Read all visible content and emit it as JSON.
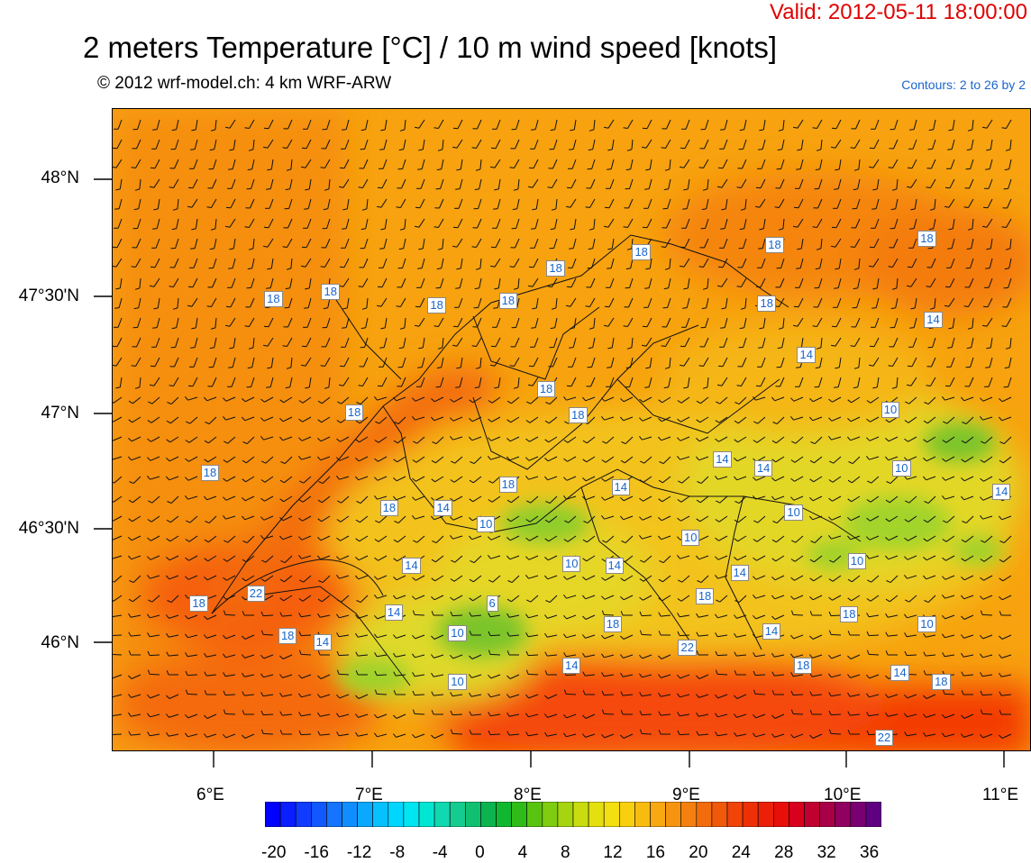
{
  "header": {
    "valid": "Valid: 2012-05-11 18:00:00",
    "title": "2 meters Temperature [°C] / 10 m wind speed [knots]",
    "subtitle": "© 2012 wrf-model.ch: 4 km WRF-ARW",
    "contours": "Contours: 2 to 26 by 2"
  },
  "axes": {
    "lat_labels": [
      "48°N",
      "47°30'N",
      "47°N",
      "46°30'N",
      "46°N"
    ],
    "lon_labels": [
      "6°E",
      "7°E",
      "8°E",
      "9°E",
      "10°E",
      "11°E"
    ]
  },
  "colorbar": {
    "ticks": [
      "-20",
      "-16",
      "-12",
      "-8",
      "-4",
      "0",
      "4",
      "8",
      "12",
      "16",
      "20",
      "24",
      "28",
      "32",
      "36"
    ]
  },
  "contour_labels": [
    {
      "text": "18",
      "lon": 7.4,
      "lat": 47.46
    },
    {
      "text": "18",
      "lon": 6.73,
      "lat": 47.52
    },
    {
      "text": "18",
      "lon": 6.37,
      "lat": 47.49
    },
    {
      "text": "18",
      "lon": 8.15,
      "lat": 47.62
    },
    {
      "text": "18",
      "lon": 7.85,
      "lat": 47.48
    },
    {
      "text": "18",
      "lon": 8.69,
      "lat": 47.69
    },
    {
      "text": "18",
      "lon": 9.53,
      "lat": 47.72
    },
    {
      "text": "18",
      "lon": 10.49,
      "lat": 47.75
    },
    {
      "text": "18",
      "lon": 9.48,
      "lat": 47.47
    },
    {
      "text": "14",
      "lon": 10.53,
      "lat": 47.4
    },
    {
      "text": "14",
      "lon": 9.73,
      "lat": 47.25
    },
    {
      "text": "18",
      "lon": 8.09,
      "lat": 47.1
    },
    {
      "text": "18",
      "lon": 6.88,
      "lat": 47.0
    },
    {
      "text": "18",
      "lon": 8.29,
      "lat": 46.99
    },
    {
      "text": "10",
      "lon": 10.26,
      "lat": 47.01
    },
    {
      "text": "18",
      "lon": 5.97,
      "lat": 46.74
    },
    {
      "text": "14",
      "lon": 9.2,
      "lat": 46.8
    },
    {
      "text": "14",
      "lon": 9.46,
      "lat": 46.76
    },
    {
      "text": "10",
      "lon": 10.33,
      "lat": 46.76
    },
    {
      "text": "18",
      "lon": 7.85,
      "lat": 46.69
    },
    {
      "text": "14",
      "lon": 8.56,
      "lat": 46.68
    },
    {
      "text": "14",
      "lon": 10.96,
      "lat": 46.66
    },
    {
      "text": "18",
      "lon": 7.1,
      "lat": 46.59
    },
    {
      "text": "14",
      "lon": 7.44,
      "lat": 46.59
    },
    {
      "text": "10",
      "lon": 9.65,
      "lat": 46.57
    },
    {
      "text": "10",
      "lon": 7.71,
      "lat": 46.52
    },
    {
      "text": "10",
      "lon": 9.0,
      "lat": 46.46
    },
    {
      "text": "14",
      "lon": 7.24,
      "lat": 46.34
    },
    {
      "text": "10",
      "lon": 8.25,
      "lat": 46.35
    },
    {
      "text": "14",
      "lon": 8.52,
      "lat": 46.34
    },
    {
      "text": "14",
      "lon": 9.31,
      "lat": 46.31
    },
    {
      "text": "10",
      "lon": 10.05,
      "lat": 46.36
    },
    {
      "text": "22",
      "lon": 6.26,
      "lat": 46.22
    },
    {
      "text": "18",
      "lon": 5.9,
      "lat": 46.18
    },
    {
      "text": "6",
      "lon": 7.77,
      "lat": 46.18
    },
    {
      "text": "18",
      "lon": 9.09,
      "lat": 46.21
    },
    {
      "text": "14",
      "lon": 7.13,
      "lat": 46.14
    },
    {
      "text": "18",
      "lon": 10.0,
      "lat": 46.13
    },
    {
      "text": "18",
      "lon": 8.51,
      "lat": 46.09
    },
    {
      "text": "10",
      "lon": 10.49,
      "lat": 46.09
    },
    {
      "text": "14",
      "lon": 9.51,
      "lat": 46.06
    },
    {
      "text": "18",
      "lon": 6.46,
      "lat": 46.04
    },
    {
      "text": "10",
      "lon": 7.53,
      "lat": 46.05
    },
    {
      "text": "14",
      "lon": 6.68,
      "lat": 46.01
    },
    {
      "text": "22",
      "lon": 8.98,
      "lat": 45.99
    },
    {
      "text": "14",
      "lon": 8.25,
      "lat": 45.91
    },
    {
      "text": "18",
      "lon": 9.71,
      "lat": 45.91
    },
    {
      "text": "14",
      "lon": 10.32,
      "lat": 45.88
    },
    {
      "text": "18",
      "lon": 10.58,
      "lat": 45.84
    },
    {
      "text": "10",
      "lon": 7.53,
      "lat": 45.84
    },
    {
      "text": "22",
      "lon": 10.22,
      "lat": 45.6
    }
  ],
  "colors": {
    "valid": "#e00000",
    "label_text": "#1a66cc"
  }
}
